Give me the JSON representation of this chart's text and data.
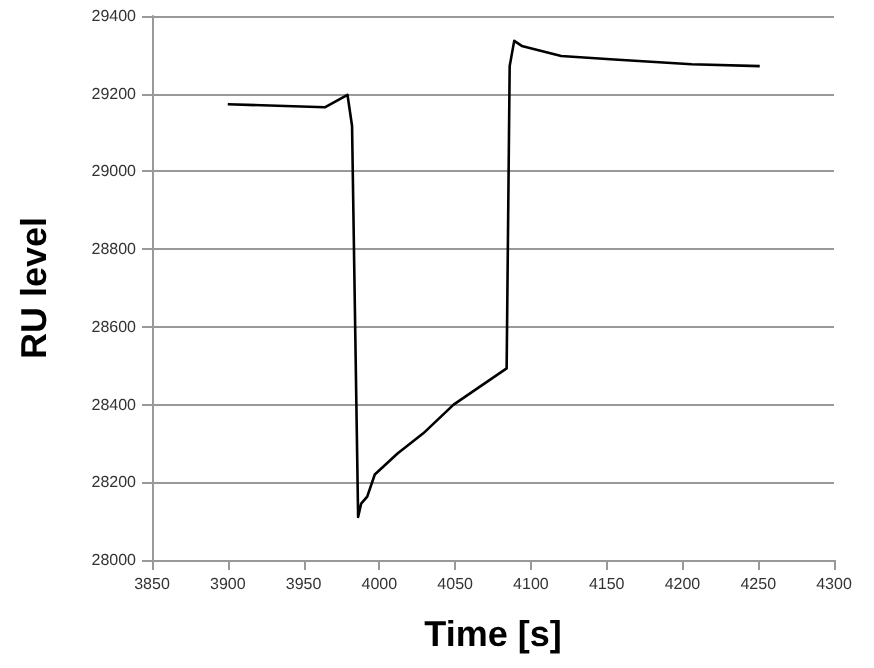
{
  "chart_data": {
    "type": "line",
    "xlabel": "Time [s]",
    "ylabel": "RU level",
    "series": [
      {
        "color": "#000000",
        "x": [
          3900,
          3964,
          3979,
          3982,
          3986,
          3988,
          3992,
          3997,
          4012,
          4029,
          4049,
          4084,
          4086,
          4089,
          4094,
          4120,
          4155,
          4206,
          4251
        ],
        "values": [
          29173,
          29165,
          29197,
          29117,
          28111,
          28145,
          28163,
          28220,
          28274,
          28326,
          28400,
          28493,
          29271,
          29336,
          29323,
          29297,
          29288,
          29276,
          29271
        ]
      }
    ],
    "xlim": [
      3850,
      4300
    ],
    "xticks": [
      3850,
      3900,
      3950,
      4000,
      4050,
      4100,
      4150,
      4200,
      4250,
      4300
    ],
    "ylim": [
      28000,
      29400
    ],
    "yticks": [
      28000,
      28200,
      28400,
      28600,
      28800,
      29000,
      29200,
      29400
    ],
    "grid": "y",
    "marker": "none",
    "line_style": "solid"
  }
}
